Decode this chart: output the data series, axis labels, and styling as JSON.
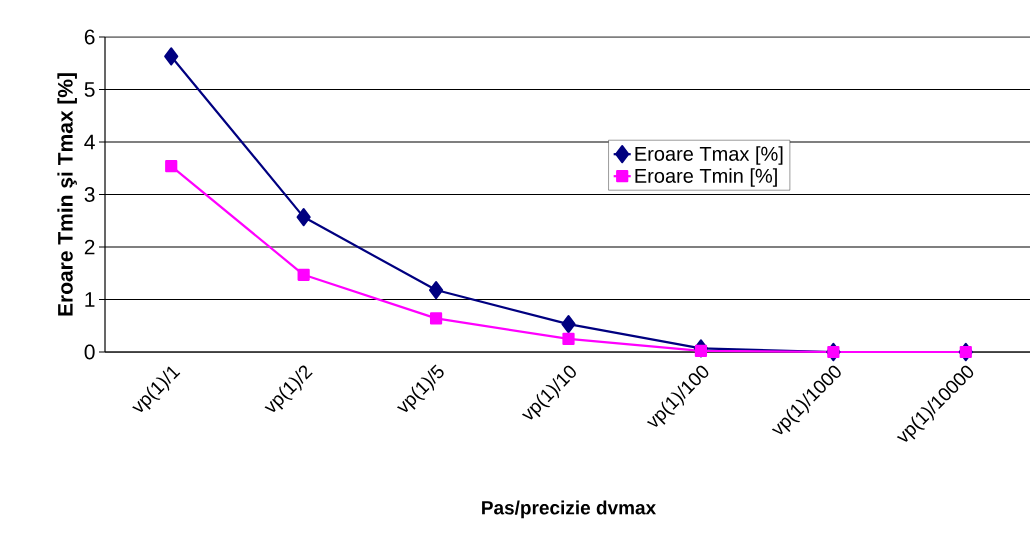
{
  "chart_data": {
    "type": "line",
    "xlabel": "Pas/precizie dvmax",
    "ylabel": "Eroare Tmin şi Tmax [%]",
    "categories": [
      "vp(1)/1",
      "vp(1)/2",
      "vp(1)/5",
      "vp(1)/10",
      "vp(1)/100",
      "vp(1)/1000",
      "vp(1)/10000"
    ],
    "series": [
      {
        "name": "Eroare Tmax [%]",
        "color": "#000080",
        "marker": "diamond",
        "values": [
          5.63,
          2.57,
          1.18,
          0.53,
          0.07,
          0,
          0
        ]
      },
      {
        "name": "Eroare Tmin [%]",
        "color": "#ff00ff",
        "marker": "square",
        "values": [
          3.54,
          1.47,
          0.64,
          0.25,
          0.02,
          0,
          0
        ]
      }
    ],
    "ylim": [
      0,
      6
    ],
    "yticks": [
      0,
      1,
      2,
      3,
      4,
      5,
      6
    ],
    "grid": "y",
    "legend": "right",
    "line_style": "solid"
  }
}
